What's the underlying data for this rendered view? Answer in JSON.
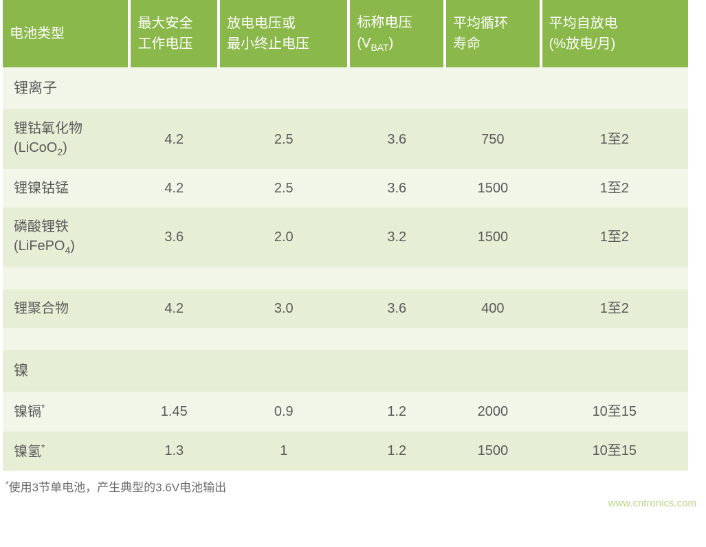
{
  "table": {
    "type": "table",
    "colors": {
      "header_bg": "#8bb84a",
      "header_text": "#ffffff",
      "row_light": "#f2f6e8",
      "row_dark": "#e6eed5",
      "body_text": "#5a5a5a",
      "footnote_text": "#6a6a6a",
      "watermark_text": "#b8d48a"
    },
    "font_sizes": {
      "header": 20,
      "body": 20,
      "footnote": 17,
      "watermark": 15
    },
    "columns": [
      {
        "label": "电池类型",
        "width_pct": 18.5,
        "align": "left"
      },
      {
        "label_line1": "最大安全",
        "label_line2": "工作电压",
        "width_pct": 13,
        "align": "center"
      },
      {
        "label_line1": "放电电压或",
        "label_line2": "最小终止电压",
        "width_pct": 19,
        "align": "left"
      },
      {
        "label_line1": "标称电压",
        "label_vbat_prefix": "(V",
        "label_vbat_sub": "BAT",
        "label_vbat_suffix": ")",
        "width_pct": 14,
        "align": "left"
      },
      {
        "label_line1": "平均循环",
        "label_line2": "寿命",
        "width_pct": 14,
        "align": "left"
      },
      {
        "label_line1": "平均自放电",
        "label_line2": "(%放电/月)",
        "width_pct": 21.5,
        "align": "left"
      }
    ],
    "sections": [
      {
        "title": "锂离子",
        "rows": [
          {
            "name_line1": "锂钴氧化物",
            "name_formula_prefix": "(LiCoO",
            "name_formula_sub": "2",
            "name_formula_suffix": ")",
            "max_v": "4.2",
            "min_v": "2.5",
            "nom_v": "3.6",
            "cycle": "750",
            "self_discharge": "1至2"
          },
          {
            "name_line1": "锂镍钴锰",
            "max_v": "4.2",
            "min_v": "2.5",
            "nom_v": "3.6",
            "cycle": "1500",
            "self_discharge": "1至2"
          },
          {
            "name_line1": "磷酸锂铁",
            "name_formula_prefix": "(LiFePO",
            "name_formula_sub": "4",
            "name_formula_suffix": ")",
            "max_v": "3.6",
            "min_v": "2.0",
            "nom_v": "3.2",
            "cycle": "1500",
            "self_discharge": "1至2"
          }
        ]
      },
      {
        "standalone_rows": [
          {
            "name_line1": "锂聚合物",
            "max_v": "4.2",
            "min_v": "3.0",
            "nom_v": "3.6",
            "cycle": "400",
            "self_discharge": "1至2"
          }
        ]
      },
      {
        "title": "镍",
        "rows": [
          {
            "name_line1": "镍镉",
            "name_sup": "*",
            "max_v": "1.45",
            "min_v": "0.9",
            "nom_v": "1.2",
            "cycle": "2000",
            "self_discharge": "10至15"
          },
          {
            "name_line1": "镍氢",
            "name_sup": "*",
            "max_v": "1.3",
            "min_v": "1",
            "nom_v": "1.2",
            "cycle": "1500",
            "self_discharge": "10至15"
          }
        ]
      }
    ],
    "footnote_marker": "*",
    "footnote_text": "使用3节单电池，产生典型的3.6V电池输出",
    "watermark": "www.cntronics.com"
  }
}
